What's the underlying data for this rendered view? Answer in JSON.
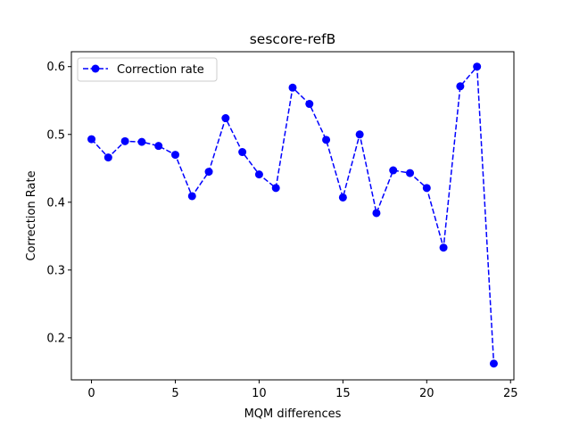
{
  "chart_data": {
    "type": "line",
    "title": "sescore-refB",
    "xlabel": "MQM differences",
    "ylabel": "Correction Rate",
    "xlim": [
      -1.2,
      25.2
    ],
    "ylim": [
      0.138,
      0.622
    ],
    "xticks": [
      0,
      5,
      10,
      15,
      20,
      25
    ],
    "yticks": [
      0.2,
      0.3,
      0.4,
      0.5,
      0.6
    ],
    "xtick_labels": [
      "0",
      "5",
      "10",
      "15",
      "20",
      "25"
    ],
    "ytick_labels": [
      "0.2",
      "0.3",
      "0.4",
      "0.5",
      "0.6"
    ],
    "grid": false,
    "legend_position": "upper-left",
    "series": [
      {
        "name": "Correction rate",
        "color": "#0000ff",
        "line_style": "dashed",
        "marker": "circle",
        "x": [
          0,
          1,
          2,
          3,
          4,
          5,
          6,
          7,
          8,
          9,
          10,
          11,
          12,
          13,
          14,
          15,
          16,
          17,
          18,
          19,
          20,
          21,
          22,
          23,
          24
        ],
        "y": [
          0.493,
          0.466,
          0.49,
          0.489,
          0.483,
          0.47,
          0.409,
          0.445,
          0.524,
          0.474,
          0.441,
          0.421,
          0.569,
          0.545,
          0.492,
          0.407,
          0.5,
          0.384,
          0.447,
          0.443,
          0.421,
          0.333,
          0.571,
          0.6,
          0.162
        ]
      }
    ]
  }
}
